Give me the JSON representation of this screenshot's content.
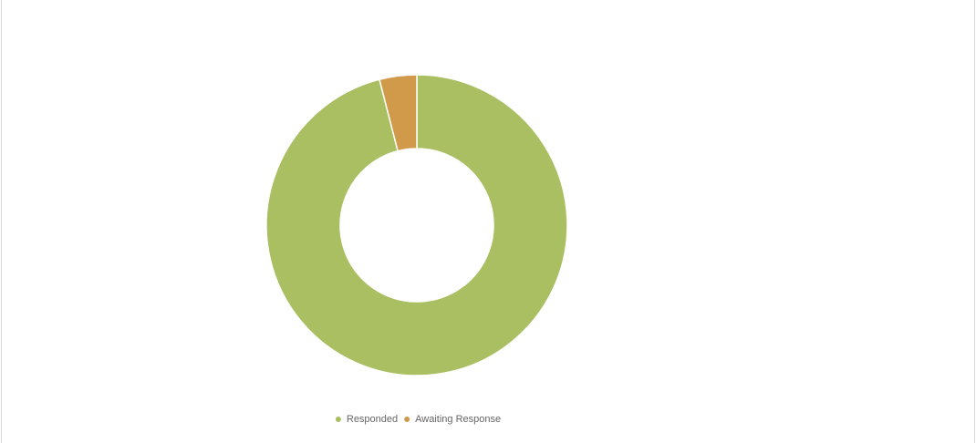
{
  "chart_data": {
    "type": "doughnut",
    "categories": [
      "Responded",
      "Awaiting Response"
    ],
    "values": [
      96,
      4
    ],
    "colors": [
      "#a9bf62",
      "#d09a4a"
    ],
    "legend": "bottom"
  }
}
